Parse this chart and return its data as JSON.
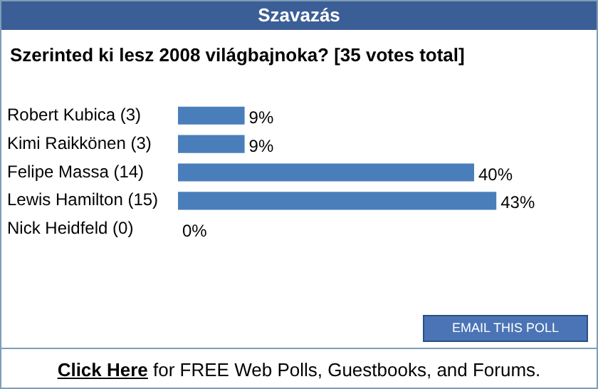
{
  "chart_data": {
    "type": "bar",
    "orientation": "horizontal",
    "title": "Szavazás",
    "subtitle": "Szerinted ki lesz 2008 világbajnoka? [35 votes total]",
    "categories": [
      "Robert Kubica (3)",
      "Kimi Raikkönen (3)",
      "Felipe Massa (14)",
      "Lewis Hamilton (15)",
      "Nick Heidfeld (0)"
    ],
    "values": [
      9,
      9,
      40,
      43,
      0
    ],
    "value_labels": [
      "9%",
      "9%",
      "40%",
      "43%",
      "0%"
    ],
    "color": "#4a7ebb",
    "tick_labels": "y",
    "legend": false,
    "annotations": [
      "EMAIL THIS POLL",
      "Click Here",
      " for FREE Web Polls, Guestbooks, and Forums."
    ]
  }
}
